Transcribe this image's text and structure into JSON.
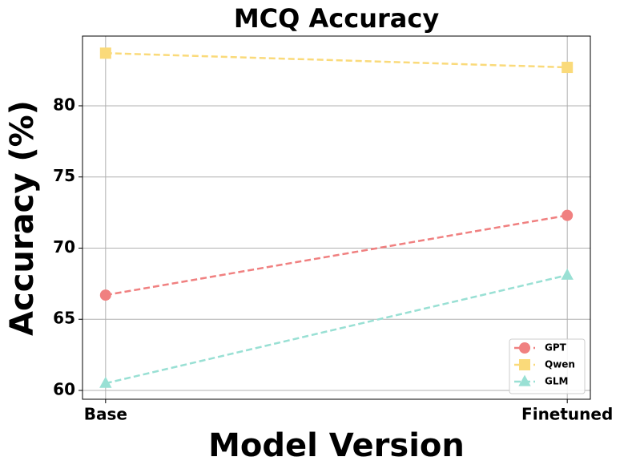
{
  "chart_data": {
    "type": "line",
    "title": "MCQ Accuracy",
    "x_label": "Model Version",
    "y_label": "Accuracy (%)",
    "categories": [
      "Base",
      "Finetuned"
    ],
    "series": [
      {
        "name": "GPT",
        "color": "#f08080",
        "marker": "circle",
        "values": [
          66.7,
          72.3
        ]
      },
      {
        "name": "Qwen",
        "color": "#fada7a",
        "marker": "square",
        "values": [
          83.7,
          82.7
        ]
      },
      {
        "name": "GLM",
        "color": "#99e0d4",
        "marker": "triangle",
        "values": [
          60.5,
          68.1
        ]
      }
    ],
    "ylim": [
      59.38,
      84.9
    ],
    "yticks": [
      60,
      65,
      70,
      75,
      80
    ],
    "grid": true,
    "legend": "lower right"
  }
}
